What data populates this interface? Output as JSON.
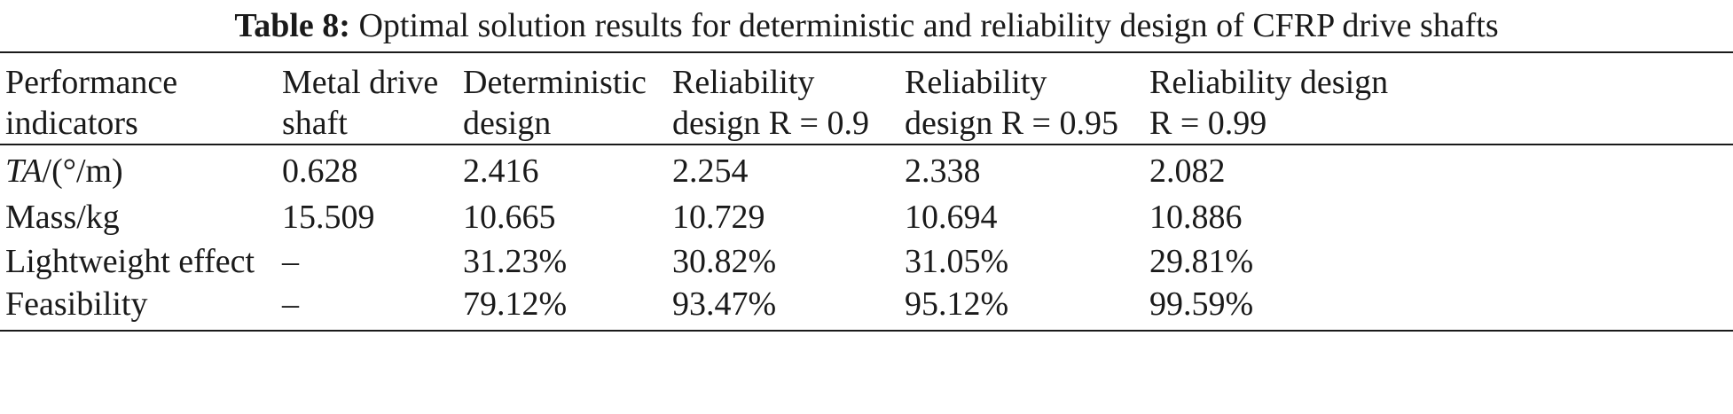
{
  "caption": {
    "label": "Table 8:",
    "title": "Optimal solution results for deterministic and reliability design of CFRP drive shafts"
  },
  "table": {
    "headers": [
      [
        "Performance",
        "indicators"
      ],
      [
        "Metal drive",
        "shaft"
      ],
      [
        "Deterministic",
        "design"
      ],
      [
        "Reliability",
        "design R = 0.9"
      ],
      [
        "Reliability",
        "design R = 0.95"
      ],
      [
        "Reliability design",
        "R = 0.99"
      ]
    ],
    "rows": [
      {
        "indicator_italic": "TA",
        "indicator_unit": "/(°/m)",
        "values": [
          "0.628",
          "2.416",
          "2.254",
          "2.338",
          "2.082"
        ]
      },
      {
        "indicator": "Mass/kg",
        "values": [
          "15.509",
          "10.665",
          "10.729",
          "10.694",
          "10.886"
        ]
      },
      {
        "indicator": "Lightweight effect",
        "values": [
          "–",
          "31.23%",
          "30.82%",
          "31.05%",
          "29.81%"
        ]
      },
      {
        "indicator": "Feasibility",
        "values": [
          "–",
          "79.12%",
          "93.47%",
          "95.12%",
          "99.59%"
        ]
      }
    ]
  }
}
